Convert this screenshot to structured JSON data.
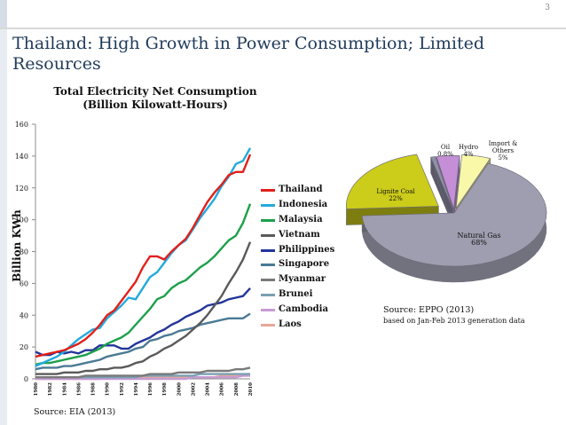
{
  "slide": {
    "number": "3",
    "title": "Thailand: High Growth in Power Consumption;  Limited Resources"
  },
  "colors": {
    "Thailand": "#e0201b",
    "Indonesia": "#23aadc",
    "Malaysia": "#1ca04a",
    "Vietnam": "#5a5a5a",
    "Philippines": "#23359a",
    "Singapore": "#4a7a95",
    "Myanmar": "#7a7a7a",
    "Brunei": "#7aa0b4",
    "Cambodia": "#c79bd3",
    "Laos": "#e7a89a"
  },
  "chart_data": [
    {
      "type": "line",
      "title": "Total Electricity Net Consumption\n(Billion Kilowatt-Hours)",
      "ylabel": "Billion KWh",
      "xlabel": "",
      "ylim": [
        0,
        160
      ],
      "yticks": [
        0,
        20,
        40,
        60,
        80,
        100,
        120,
        140,
        160
      ],
      "x_tick_labels": [
        "1980",
        "1982",
        "1984",
        "1986",
        "1988",
        "1990",
        "1992",
        "1994",
        "1996",
        "1998",
        "2000",
        "2002",
        "2004",
        "2006",
        "2008",
        "2010"
      ],
      "x": [
        1980,
        1981,
        1982,
        1983,
        1984,
        1985,
        1986,
        1987,
        1988,
        1989,
        1990,
        1991,
        1992,
        1993,
        1994,
        1995,
        1996,
        1997,
        1998,
        1999,
        2000,
        2001,
        2002,
        2003,
        2004,
        2005,
        2006,
        2007,
        2008,
        2009,
        2010
      ],
      "legend_position": "right",
      "grid": false,
      "series": [
        {
          "name": "Thailand",
          "values": [
            14,
            15,
            16,
            17,
            18,
            20,
            22,
            25,
            29,
            34,
            40,
            43,
            49,
            55,
            61,
            70,
            77,
            77,
            75,
            80,
            84,
            88,
            95,
            103,
            111,
            117,
            122,
            128,
            130,
            130,
            141
          ]
        },
        {
          "name": "Indonesia",
          "values": [
            8,
            10,
            12,
            14,
            17,
            21,
            25,
            28,
            31,
            32,
            38,
            42,
            46,
            51,
            50,
            57,
            64,
            67,
            73,
            79,
            84,
            87,
            94,
            101,
            107,
            113,
            121,
            127,
            135,
            137,
            145
          ]
        },
        {
          "name": "Malaysia",
          "values": [
            9,
            10,
            10,
            11,
            12,
            13,
            14,
            15,
            17,
            19,
            22,
            24,
            26,
            29,
            34,
            39,
            44,
            50,
            52,
            57,
            60,
            62,
            66,
            70,
            73,
            77,
            82,
            87,
            90,
            98,
            110
          ]
        },
        {
          "name": "Vietnam",
          "values": [
            3,
            3,
            3,
            3,
            4,
            4,
            4,
            5,
            5,
            6,
            6,
            7,
            7,
            8,
            10,
            11,
            14,
            16,
            19,
            21,
            24,
            27,
            31,
            35,
            40,
            46,
            52,
            60,
            67,
            75,
            86
          ]
        },
        {
          "name": "Philippines",
          "values": [
            17,
            15,
            15,
            17,
            16,
            17,
            16,
            18,
            18,
            21,
            21,
            21,
            19,
            19,
            22,
            24,
            26,
            29,
            31,
            34,
            36,
            39,
            41,
            43,
            46,
            47,
            48,
            50,
            51,
            52,
            57
          ]
        },
        {
          "name": "Singapore",
          "values": [
            6,
            7,
            7,
            7,
            8,
            8,
            9,
            10,
            11,
            12,
            14,
            15,
            16,
            17,
            19,
            20,
            24,
            25,
            27,
            28,
            30,
            31,
            32,
            34,
            35,
            36,
            37,
            38,
            38,
            38,
            41
          ]
        },
        {
          "name": "Myanmar",
          "values": [
            1,
            1,
            1,
            1,
            1,
            1,
            1,
            2,
            2,
            2,
            2,
            2,
            2,
            2,
            2,
            2,
            3,
            3,
            3,
            3,
            4,
            4,
            4,
            4,
            5,
            5,
            5,
            5,
            6,
            6,
            7
          ]
        },
        {
          "name": "Brunei",
          "values": [
            1,
            1,
            1,
            1,
            1,
            1,
            1,
            1,
            1,
            1,
            1,
            1,
            1,
            1,
            1,
            2,
            2,
            2,
            2,
            2,
            2,
            2,
            2,
            3,
            3,
            3,
            3,
            3,
            3,
            3,
            3
          ]
        },
        {
          "name": "Cambodia",
          "values": [
            0,
            0,
            0,
            0,
            0,
            0,
            0,
            0,
            0,
            0,
            0,
            0,
            0,
            0,
            0,
            0,
            0,
            0,
            0,
            0,
            0,
            0,
            1,
            1,
            1,
            1,
            1,
            1,
            1,
            2,
            2
          ]
        },
        {
          "name": "Laos",
          "values": [
            0,
            0,
            0,
            0,
            0,
            0,
            0,
            0,
            0,
            0,
            1,
            1,
            1,
            1,
            1,
            1,
            1,
            1,
            1,
            1,
            1,
            1,
            1,
            1,
            1,
            1,
            2,
            2,
            2,
            2,
            2
          ]
        }
      ],
      "source": "Source: EIA (2013)"
    },
    {
      "type": "pie",
      "slices": [
        {
          "name": "Natural Gas",
          "label_lines": [
            "Natural Gas",
            "68%"
          ],
          "value": 68,
          "color": "#9e9eb0"
        },
        {
          "name": "Lignite Coal",
          "label_lines": [
            "Lignite Coal",
            "22%"
          ],
          "value": 22,
          "color": "#cccc1a"
        },
        {
          "name": "Oil",
          "label_lines": [
            "Oil",
            "0.8%"
          ],
          "value": 0.8,
          "color": "#8f8fa6"
        },
        {
          "name": "Hydro",
          "label_lines": [
            "Hydro",
            "4%"
          ],
          "value": 4,
          "color": "#c48fd6"
        },
        {
          "name": "Import & Others",
          "label_lines": [
            "Import &",
            "Others",
            "5%"
          ],
          "value": 5,
          "color": "#f8f8a8"
        }
      ],
      "source": "Source: EPPO (2013)",
      "source_note": "based on Jan-Feb 2013 generation data"
    }
  ]
}
